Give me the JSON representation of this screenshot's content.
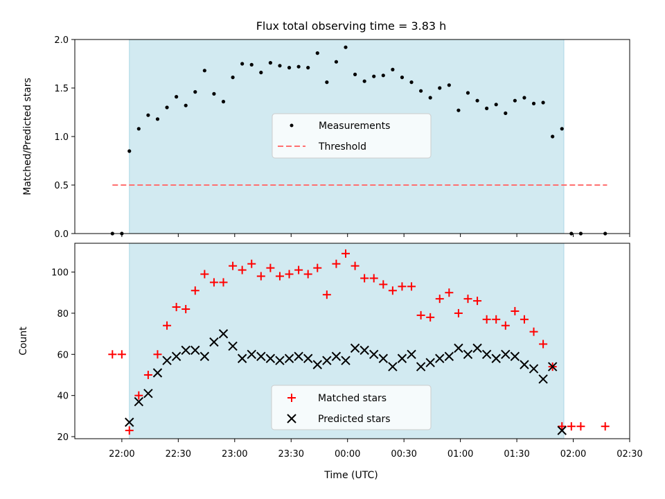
{
  "title": "Flux total observing time = 3.83 h",
  "colors": {
    "shade": "#add8e6",
    "threshold": "#ff6f6f",
    "matched": "#ff0000",
    "predicted": "#000000",
    "measurements": "#000000"
  },
  "chart_data": [
    {
      "type": "scatter",
      "ylabel": "Matched/Predicted stars",
      "xlabel": "",
      "ylim": [
        0,
        2.0
      ],
      "xlim": [
        "21:35",
        "02:30"
      ],
      "x_ticks": [
        "22:00",
        "22:30",
        "23:00",
        "23:30",
        "00:00",
        "00:30",
        "01:00",
        "01:30",
        "02:00",
        "02:30"
      ],
      "y_ticks": [
        "0.0",
        "0.5",
        "1.0",
        "1.5",
        "2.0"
      ],
      "shaded_span": [
        "22:04",
        "01:55"
      ],
      "legend": [
        "Measurements",
        "Threshold"
      ],
      "legend_position": "center",
      "threshold": {
        "name": "Threshold",
        "value": 0.5,
        "x_range": [
          "21:55",
          "02:18"
        ]
      },
      "series": [
        {
          "name": "Measurements",
          "marker": "dot",
          "points": [
            [
              "21:55",
              0.0
            ],
            [
              "22:00",
              0.0
            ],
            [
              "22:04",
              0.85
            ],
            [
              "22:09",
              1.08
            ],
            [
              "22:14",
              1.22
            ],
            [
              "22:19",
              1.18
            ],
            [
              "22:24",
              1.3
            ],
            [
              "22:29",
              1.41
            ],
            [
              "22:34",
              1.32
            ],
            [
              "22:39",
              1.46
            ],
            [
              "22:44",
              1.68
            ],
            [
              "22:49",
              1.44
            ],
            [
              "22:54",
              1.36
            ],
            [
              "22:59",
              1.61
            ],
            [
              "23:04",
              1.75
            ],
            [
              "23:09",
              1.74
            ],
            [
              "23:14",
              1.66
            ],
            [
              "23:19",
              1.76
            ],
            [
              "23:24",
              1.73
            ],
            [
              "23:29",
              1.71
            ],
            [
              "23:34",
              1.72
            ],
            [
              "23:39",
              1.71
            ],
            [
              "23:44",
              1.86
            ],
            [
              "23:49",
              1.56
            ],
            [
              "23:54",
              1.77
            ],
            [
              "23:59",
              1.92
            ],
            [
              "00:04",
              1.64
            ],
            [
              "00:09",
              1.57
            ],
            [
              "00:14",
              1.62
            ],
            [
              "00:19",
              1.63
            ],
            [
              "00:24",
              1.69
            ],
            [
              "00:29",
              1.61
            ],
            [
              "00:34",
              1.56
            ],
            [
              "00:39",
              1.47
            ],
            [
              "00:44",
              1.4
            ],
            [
              "00:49",
              1.5
            ],
            [
              "00:54",
              1.53
            ],
            [
              "00:59",
              1.27
            ],
            [
              "01:04",
              1.45
            ],
            [
              "01:09",
              1.37
            ],
            [
              "01:14",
              1.29
            ],
            [
              "01:19",
              1.33
            ],
            [
              "01:24",
              1.24
            ],
            [
              "01:29",
              1.37
            ],
            [
              "01:34",
              1.4
            ],
            [
              "01:39",
              1.34
            ],
            [
              "01:44",
              1.35
            ],
            [
              "01:49",
              1.0
            ],
            [
              "01:54",
              1.08
            ],
            [
              "01:59",
              0.0
            ],
            [
              "02:04",
              0.0
            ],
            [
              "02:17",
              0.0
            ]
          ]
        }
      ]
    },
    {
      "type": "scatter",
      "ylabel": "Count",
      "xlabel": "Time (UTC)",
      "ylim": [
        19,
        114
      ],
      "xlim": [
        "21:35",
        "02:30"
      ],
      "x_ticks": [
        "22:00",
        "22:30",
        "23:00",
        "23:30",
        "00:00",
        "00:30",
        "01:00",
        "01:30",
        "02:00",
        "02:30"
      ],
      "y_ticks": [
        "20",
        "40",
        "60",
        "80",
        "100"
      ],
      "shaded_span": [
        "22:04",
        "01:55"
      ],
      "legend": [
        "Matched stars",
        "Predicted stars"
      ],
      "legend_position": "lower center",
      "series": [
        {
          "name": "Matched stars",
          "marker": "plus",
          "points": [
            [
              "21:55",
              60
            ],
            [
              "22:00",
              60
            ],
            [
              "22:04",
              23
            ],
            [
              "22:09",
              40
            ],
            [
              "22:14",
              50
            ],
            [
              "22:19",
              60
            ],
            [
              "22:24",
              74
            ],
            [
              "22:29",
              83
            ],
            [
              "22:34",
              82
            ],
            [
              "22:39",
              91
            ],
            [
              "22:44",
              99
            ],
            [
              "22:49",
              95
            ],
            [
              "22:54",
              95
            ],
            [
              "22:59",
              103
            ],
            [
              "23:04",
              101
            ],
            [
              "23:09",
              104
            ],
            [
              "23:14",
              98
            ],
            [
              "23:19",
              102
            ],
            [
              "23:24",
              98
            ],
            [
              "23:29",
              99
            ],
            [
              "23:34",
              101
            ],
            [
              "23:39",
              99
            ],
            [
              "23:44",
              102
            ],
            [
              "23:49",
              89
            ],
            [
              "23:54",
              104
            ],
            [
              "23:59",
              109
            ],
            [
              "00:04",
              103
            ],
            [
              "00:09",
              97
            ],
            [
              "00:14",
              97
            ],
            [
              "00:19",
              94
            ],
            [
              "00:24",
              91
            ],
            [
              "00:29",
              93
            ],
            [
              "00:34",
              93
            ],
            [
              "00:39",
              79
            ],
            [
              "00:44",
              78
            ],
            [
              "00:49",
              87
            ],
            [
              "00:54",
              90
            ],
            [
              "00:59",
              80
            ],
            [
              "01:04",
              87
            ],
            [
              "01:09",
              86
            ],
            [
              "01:14",
              77
            ],
            [
              "01:19",
              77
            ],
            [
              "01:24",
              74
            ],
            [
              "01:29",
              81
            ],
            [
              "01:34",
              77
            ],
            [
              "01:39",
              71
            ],
            [
              "01:44",
              65
            ],
            [
              "01:49",
              54
            ],
            [
              "01:54",
              25
            ],
            [
              "01:59",
              25
            ],
            [
              "02:04",
              25
            ],
            [
              "02:17",
              25
            ]
          ]
        },
        {
          "name": "Predicted stars",
          "marker": "x",
          "points": [
            [
              "22:04",
              27
            ],
            [
              "22:09",
              37
            ],
            [
              "22:14",
              41
            ],
            [
              "22:19",
              51
            ],
            [
              "22:24",
              57
            ],
            [
              "22:29",
              59
            ],
            [
              "22:34",
              62
            ],
            [
              "22:39",
              62
            ],
            [
              "22:44",
              59
            ],
            [
              "22:49",
              66
            ],
            [
              "22:54",
              70
            ],
            [
              "22:59",
              64
            ],
            [
              "23:04",
              58
            ],
            [
              "23:09",
              60
            ],
            [
              "23:14",
              59
            ],
            [
              "23:19",
              58
            ],
            [
              "23:24",
              57
            ],
            [
              "23:29",
              58
            ],
            [
              "23:34",
              59
            ],
            [
              "23:39",
              58
            ],
            [
              "23:44",
              55
            ],
            [
              "23:49",
              57
            ],
            [
              "23:54",
              59
            ],
            [
              "23:59",
              57
            ],
            [
              "00:04",
              63
            ],
            [
              "00:09",
              62
            ],
            [
              "00:14",
              60
            ],
            [
              "00:19",
              58
            ],
            [
              "00:24",
              54
            ],
            [
              "00:29",
              58
            ],
            [
              "00:34",
              60
            ],
            [
              "00:39",
              54
            ],
            [
              "00:44",
              56
            ],
            [
              "00:49",
              58
            ],
            [
              "00:54",
              59
            ],
            [
              "00:59",
              63
            ],
            [
              "01:04",
              60
            ],
            [
              "01:09",
              63
            ],
            [
              "01:14",
              60
            ],
            [
              "01:19",
              58
            ],
            [
              "01:24",
              60
            ],
            [
              "01:29",
              59
            ],
            [
              "01:34",
              55
            ],
            [
              "01:39",
              53
            ],
            [
              "01:44",
              48
            ],
            [
              "01:49",
              54
            ],
            [
              "01:54",
              23
            ]
          ]
        }
      ]
    }
  ]
}
